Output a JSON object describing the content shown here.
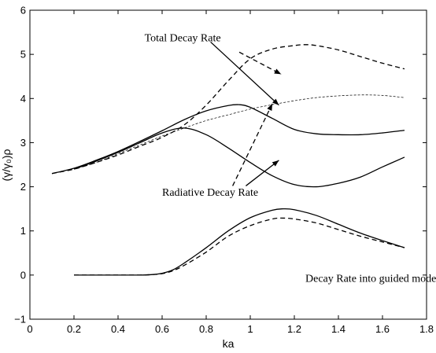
{
  "chart_data": {
    "type": "line",
    "title": "",
    "xlabel": "ka",
    "ylabel": "(γ/γ₀)ρ",
    "xlim": [
      0,
      1.8
    ],
    "ylim": [
      -1,
      6
    ],
    "xticks": [
      0,
      0.2,
      0.4,
      0.6,
      0.8,
      1,
      1.2,
      1.4,
      1.6,
      1.8
    ],
    "yticks": [
      -1,
      0,
      1,
      2,
      3,
      4,
      5,
      6
    ],
    "grid": false,
    "legend": "none",
    "series": [
      {
        "style": "solid",
        "weight": "normal",
        "x": [
          0.1,
          0.2,
          0.3,
          0.4,
          0.5,
          0.6,
          0.7,
          0.8,
          0.9,
          0.95,
          1.0,
          1.1,
          1.2,
          1.3,
          1.4,
          1.5,
          1.6,
          1.7
        ],
        "y": [
          2.3,
          2.42,
          2.6,
          2.8,
          3.03,
          3.27,
          3.52,
          3.72,
          3.84,
          3.86,
          3.8,
          3.55,
          3.3,
          3.2,
          3.18,
          3.18,
          3.22,
          3.28
        ]
      },
      {
        "style": "dashed",
        "weight": "normal",
        "x": [
          0.1,
          0.2,
          0.3,
          0.4,
          0.5,
          0.6,
          0.7,
          0.8,
          0.9,
          1.0,
          1.1,
          1.2,
          1.25,
          1.3,
          1.4,
          1.5,
          1.6,
          1.7
        ],
        "y": [
          2.3,
          2.4,
          2.55,
          2.72,
          2.92,
          3.12,
          3.4,
          3.85,
          4.4,
          4.9,
          5.12,
          5.2,
          5.22,
          5.2,
          5.1,
          4.95,
          4.8,
          4.67
        ]
      },
      {
        "style": "solid",
        "weight": "normal",
        "x": [
          0.2,
          0.3,
          0.4,
          0.5,
          0.6,
          0.7,
          0.8,
          0.9,
          1.0,
          1.1,
          1.2,
          1.3,
          1.4,
          1.5,
          1.6,
          1.7
        ],
        "y": [
          2.4,
          2.58,
          2.78,
          3.0,
          3.22,
          3.33,
          3.18,
          2.88,
          2.55,
          2.25,
          2.05,
          2.0,
          2.08,
          2.22,
          2.45,
          2.67
        ]
      },
      {
        "style": "dashed",
        "weight": "thin",
        "x": [
          0.2,
          0.3,
          0.4,
          0.5,
          0.6,
          0.7,
          0.8,
          0.9,
          1.0,
          1.1,
          1.2,
          1.3,
          1.4,
          1.5,
          1.6,
          1.7
        ],
        "y": [
          2.4,
          2.55,
          2.75,
          2.95,
          3.15,
          3.33,
          3.5,
          3.63,
          3.76,
          3.86,
          3.95,
          4.02,
          4.06,
          4.08,
          4.07,
          4.02
        ]
      },
      {
        "style": "solid",
        "weight": "normal",
        "x": [
          0.2,
          0.4,
          0.5,
          0.55,
          0.6,
          0.65,
          0.7,
          0.8,
          0.9,
          1.0,
          1.1,
          1.15,
          1.2,
          1.3,
          1.4,
          1.5,
          1.6,
          1.7
        ],
        "y": [
          0.0,
          0.0,
          0.0,
          0.01,
          0.04,
          0.12,
          0.27,
          0.62,
          1.0,
          1.3,
          1.47,
          1.5,
          1.48,
          1.35,
          1.15,
          0.95,
          0.78,
          0.62
        ]
      },
      {
        "style": "dashed",
        "weight": "normal",
        "x": [
          0.2,
          0.4,
          0.5,
          0.55,
          0.6,
          0.65,
          0.7,
          0.8,
          0.9,
          1.0,
          1.1,
          1.15,
          1.2,
          1.3,
          1.4,
          1.5,
          1.6,
          1.7
        ],
        "y": [
          0.0,
          0.0,
          0.0,
          0.01,
          0.03,
          0.1,
          0.22,
          0.52,
          0.88,
          1.12,
          1.27,
          1.29,
          1.27,
          1.18,
          1.03,
          0.88,
          0.75,
          0.62
        ]
      }
    ],
    "annotations": [
      {
        "text": "Total Decay Rate",
        "x": 0.52,
        "y": 5.3,
        "arrows": [
          {
            "style": "solid",
            "from": [
              0.82,
              5.28
            ],
            "to": [
              1.13,
              3.85
            ]
          },
          {
            "style": "dashed",
            "from": [
              0.95,
              5.05
            ],
            "to": [
              1.14,
              4.55
            ]
          }
        ]
      },
      {
        "text": "Radiative Decay Rate",
        "x": 0.6,
        "y": 1.8,
        "arrows": [
          {
            "style": "solid",
            "from": [
              0.98,
              2.02
            ],
            "to": [
              1.13,
              2.6
            ]
          },
          {
            "style": "dashed",
            "from": [
              0.92,
              2.02
            ],
            "to": [
              1.1,
              3.88
            ]
          }
        ]
      },
      {
        "text": "Decay Rate into guided modes",
        "x": 1.25,
        "y": -0.15,
        "arrows": []
      }
    ]
  }
}
